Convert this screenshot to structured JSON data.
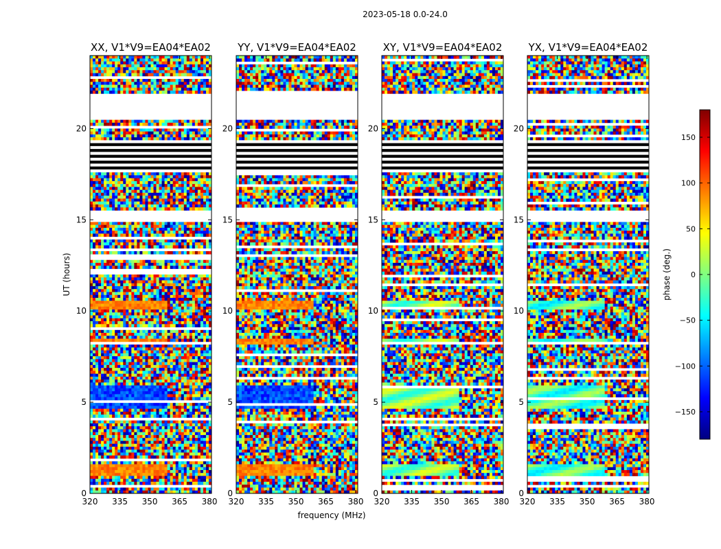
{
  "chart_data": {
    "type": "heatmap",
    "suptitle": "2023-05-18 0.0-24.0",
    "xlabel": "frequency (MHz)",
    "ylabel": "UT (hours)",
    "xlim": [
      320,
      381
    ],
    "ylim": [
      0,
      24
    ],
    "xticks": [
      320,
      335,
      350,
      365,
      380
    ],
    "yticks": [
      0,
      5,
      10,
      15,
      20
    ],
    "panels": [
      {
        "title": "XX, V1*V9=EA04*EA02",
        "correlation": "XX"
      },
      {
        "title": "YY, V1*V9=EA04*EA02",
        "correlation": "YY"
      },
      {
        "title": "XY, V1*V9=EA04*EA02",
        "correlation": "XY"
      },
      {
        "title": "YX, V1*V9=EA04*EA02",
        "correlation": "YX"
      }
    ],
    "blank_ut_ranges": [
      [
        21.85,
        20.55
      ],
      [
        15.35,
        14.95
      ]
    ],
    "black_striped_ut_range": [
      17.6,
      19.3
    ],
    "colorbar": {
      "label": "phase (deg.)",
      "range": [
        -180,
        180
      ],
      "ticks": [
        150,
        100,
        50,
        0,
        -50,
        -100,
        -150
      ],
      "tick_labels": [
        "150",
        "100",
        "50",
        "0",
        "−50",
        "−100",
        "−150"
      ],
      "colormap": "jet"
    }
  }
}
